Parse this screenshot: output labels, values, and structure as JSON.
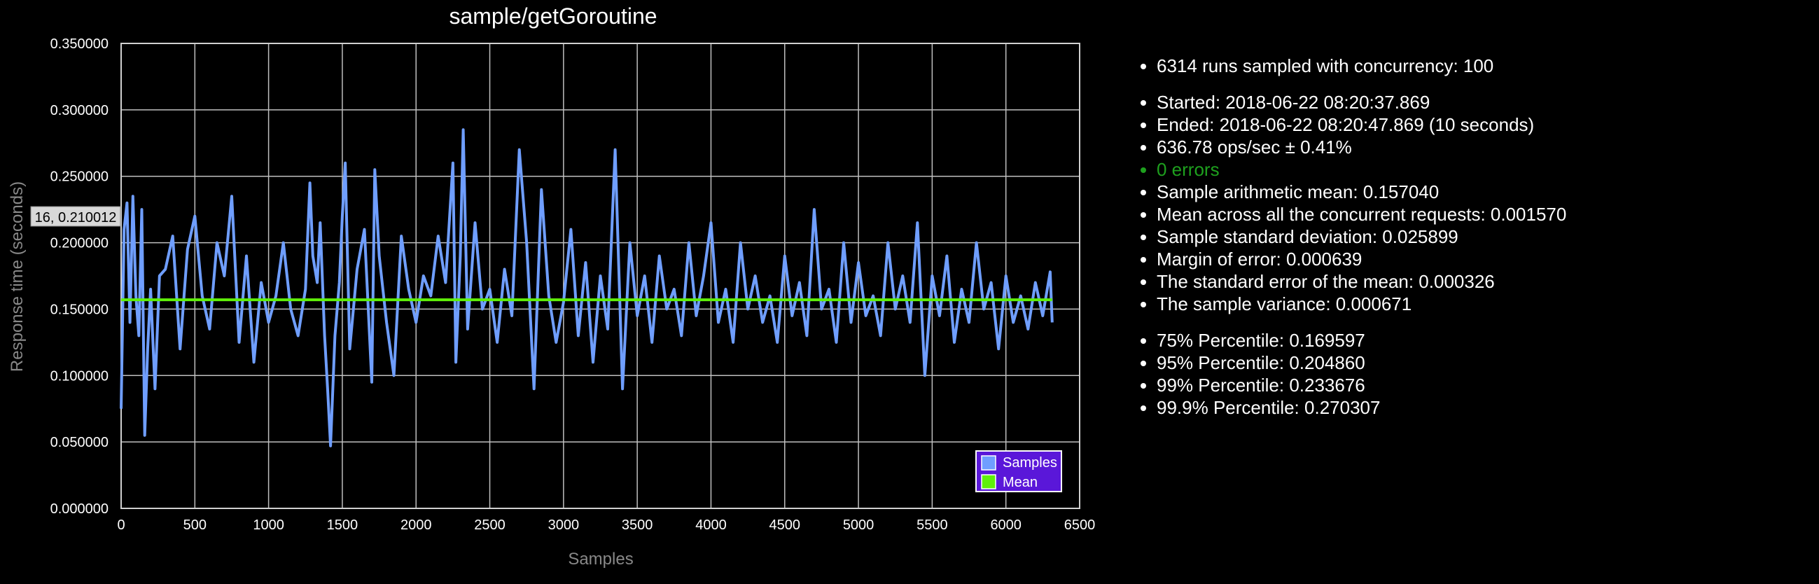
{
  "chart_data": {
    "type": "line",
    "title": "sample/getGoroutine",
    "xlabel": "Samples",
    "ylabel": "Response time (seconds)",
    "xlim": [
      0,
      6500
    ],
    "ylim": [
      0,
      0.35
    ],
    "x_ticks": [
      "0",
      "500",
      "1000",
      "1500",
      "2000",
      "2500",
      "3000",
      "3500",
      "4000",
      "4500",
      "5000",
      "5500",
      "6000",
      "6500"
    ],
    "y_ticks": [
      "0.000000",
      "0.050000",
      "0.100000",
      "0.150000",
      "0.200000",
      "0.250000",
      "0.300000",
      "0.350000"
    ],
    "grid": true,
    "legend_position": "bottom-right",
    "tooltip_label": "16, 0.210012",
    "series": [
      {
        "name": "Samples",
        "color": "#6f9eff",
        "x": [
          0,
          20,
          40,
          60,
          80,
          100,
          120,
          140,
          160,
          180,
          200,
          230,
          260,
          300,
          350,
          400,
          450,
          500,
          550,
          600,
          650,
          700,
          750,
          800,
          850,
          900,
          950,
          1000,
          1050,
          1100,
          1150,
          1200,
          1250,
          1280,
          1300,
          1330,
          1350,
          1380,
          1400,
          1420,
          1450,
          1480,
          1500,
          1520,
          1550,
          1600,
          1650,
          1700,
          1720,
          1750,
          1800,
          1850,
          1900,
          1950,
          2000,
          2050,
          2100,
          2150,
          2200,
          2250,
          2270,
          2300,
          2320,
          2350,
          2400,
          2450,
          2500,
          2550,
          2600,
          2650,
          2700,
          2750,
          2800,
          2850,
          2900,
          2950,
          3000,
          3050,
          3100,
          3150,
          3200,
          3250,
          3300,
          3350,
          3400,
          3450,
          3500,
          3550,
          3600,
          3650,
          3700,
          3750,
          3800,
          3850,
          3900,
          3950,
          4000,
          4050,
          4100,
          4150,
          4200,
          4250,
          4300,
          4350,
          4400,
          4450,
          4500,
          4550,
          4600,
          4650,
          4700,
          4750,
          4800,
          4850,
          4900,
          4950,
          5000,
          5050,
          5100,
          5150,
          5200,
          5250,
          5300,
          5350,
          5400,
          5450,
          5500,
          5550,
          5600,
          5650,
          5700,
          5750,
          5800,
          5850,
          5900,
          5950,
          6000,
          6050,
          6100,
          6150,
          6200,
          6250,
          6300,
          6314
        ],
        "y": [
          0.075,
          0.21,
          0.23,
          0.14,
          0.235,
          0.16,
          0.13,
          0.225,
          0.055,
          0.12,
          0.165,
          0.09,
          0.175,
          0.18,
          0.205,
          0.12,
          0.195,
          0.22,
          0.16,
          0.135,
          0.2,
          0.175,
          0.235,
          0.125,
          0.19,
          0.11,
          0.17,
          0.14,
          0.16,
          0.2,
          0.15,
          0.13,
          0.165,
          0.245,
          0.19,
          0.17,
          0.215,
          0.13,
          0.09,
          0.047,
          0.13,
          0.17,
          0.22,
          0.26,
          0.12,
          0.18,
          0.21,
          0.095,
          0.255,
          0.19,
          0.14,
          0.1,
          0.205,
          0.165,
          0.14,
          0.175,
          0.16,
          0.205,
          0.17,
          0.26,
          0.11,
          0.19,
          0.285,
          0.135,
          0.215,
          0.15,
          0.165,
          0.125,
          0.18,
          0.145,
          0.27,
          0.2,
          0.09,
          0.24,
          0.16,
          0.125,
          0.155,
          0.21,
          0.13,
          0.185,
          0.11,
          0.175,
          0.135,
          0.27,
          0.09,
          0.2,
          0.145,
          0.175,
          0.125,
          0.19,
          0.15,
          0.165,
          0.13,
          0.2,
          0.145,
          0.175,
          0.215,
          0.14,
          0.165,
          0.125,
          0.2,
          0.15,
          0.175,
          0.14,
          0.16,
          0.125,
          0.19,
          0.145,
          0.17,
          0.13,
          0.225,
          0.15,
          0.165,
          0.125,
          0.2,
          0.14,
          0.185,
          0.145,
          0.16,
          0.13,
          0.2,
          0.15,
          0.175,
          0.14,
          0.215,
          0.1,
          0.175,
          0.145,
          0.19,
          0.125,
          0.165,
          0.14,
          0.2,
          0.15,
          0.17,
          0.12,
          0.175,
          0.14,
          0.16,
          0.135,
          0.17,
          0.145,
          0.178,
          0.14
        ]
      },
      {
        "name": "Mean",
        "color": "#5ff00a",
        "x": [
          0,
          6314
        ],
        "y": [
          0.15704,
          0.15704
        ]
      }
    ]
  },
  "stats": {
    "group1": [
      "6314 runs sampled with concurrency: 100"
    ],
    "group2": [
      "Started: 2018-06-22 08:20:37.869",
      "Ended: 2018-06-22 08:20:47.869 (10 seconds)",
      "636.78 ops/sec ± 0.41%",
      "0 errors",
      "Sample arithmetic mean: 0.157040",
      "Mean across all the concurrent requests: 0.001570",
      "Sample standard deviation: 0.025899",
      "Margin of error: 0.000639",
      "The standard error of the mean: 0.000326",
      "The sample variance: 0.000671"
    ],
    "group3": [
      "75% Percentile: 0.169597",
      "95% Percentile: 0.204860",
      "99% Percentile: 0.233676",
      "99.9% Percentile: 0.270307"
    ],
    "errors_color": "#1ea01e"
  }
}
